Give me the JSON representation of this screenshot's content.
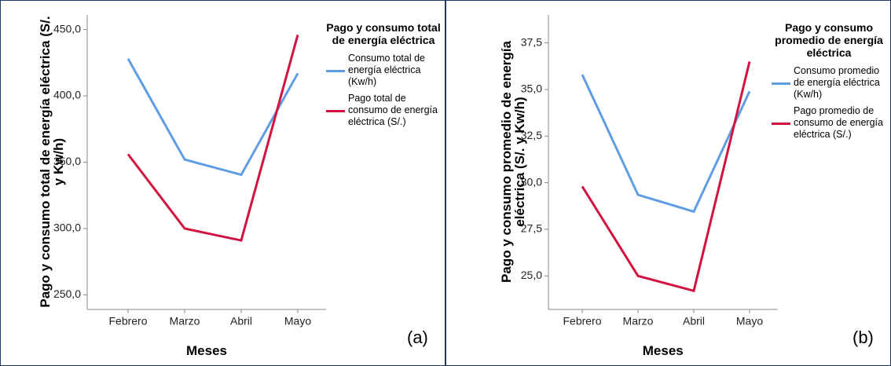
{
  "chart_data": [
    {
      "type": "line",
      "panel_label": "(a)",
      "xlabel": "Meses",
      "ylabel": "Pago y consumo total de energía eléctrica (S/. y Kw/h)",
      "legend_title": "Pago y consumo total de energía eléctrica",
      "categories": [
        "Febrero",
        "Marzo",
        "Abril",
        "Mayo"
      ],
      "series": [
        {
          "name": "Consumo total de energía eléctrica (Kw/h)",
          "color": "#5f9de3",
          "values": [
            428,
            352,
            340.5,
            417
          ]
        },
        {
          "name": "Pago total de consumo de energía eléctrica (S/.)",
          "color": "#d2123f",
          "values": [
            356,
            300,
            291,
            446
          ]
        }
      ],
      "ylim": [
        239,
        461
      ],
      "yticks": [
        {
          "value": 250,
          "label": "250,0"
        },
        {
          "value": 300,
          "label": "300,0"
        },
        {
          "value": 350,
          "label": "350,0"
        },
        {
          "value": 400,
          "label": "400,0"
        },
        {
          "value": 450,
          "label": "450,0"
        }
      ]
    },
    {
      "type": "line",
      "panel_label": "(b)",
      "xlabel": "Meses",
      "ylabel": "Pago y consumo promedio de energía eléctrica (S/. y Kw/h)",
      "legend_title": "Pago y consumo promedio de energía eléctrica",
      "categories": [
        "Febrero",
        "Marzo",
        "Abril",
        "Mayo"
      ],
      "series": [
        {
          "name": "Consumo promedio de energía eléctrica (Kw/h)",
          "color": "#5f9de3",
          "values": [
            35.8,
            29.35,
            28.45,
            34.9
          ]
        },
        {
          "name": "Pago promedio de consumo de energía eléctrica (S/.)",
          "color": "#d2123f",
          "values": [
            29.8,
            25.0,
            24.2,
            36.5
          ]
        }
      ],
      "ylim": [
        23.2,
        39.0
      ],
      "yticks": [
        {
          "value": 25,
          "label": "25,0"
        },
        {
          "value": 27.5,
          "label": "27,5"
        },
        {
          "value": 30,
          "label": "30,0"
        },
        {
          "value": 32.5,
          "label": "32,5"
        },
        {
          "value": 35,
          "label": "35,0"
        },
        {
          "value": 37.5,
          "label": "37,5"
        }
      ]
    }
  ]
}
